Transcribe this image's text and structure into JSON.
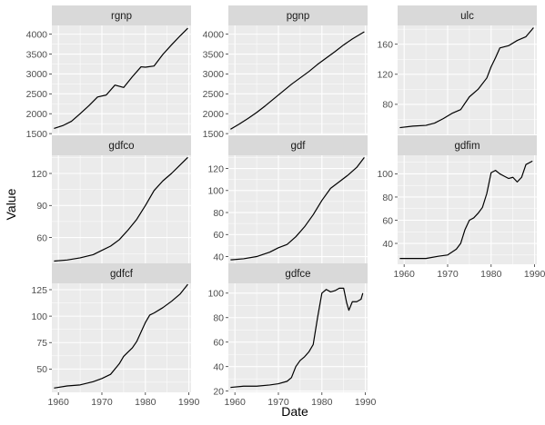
{
  "chart_data": {
    "type": "line",
    "layout": "facet_wrap",
    "ncol": 3,
    "xlabel": "Date",
    "ylabel": "Value",
    "x_ticks": [
      1960,
      1970,
      1980,
      1990
    ],
    "x_range": [
      1958.5,
      1990.5
    ],
    "grid": true,
    "colors": {
      "panel_bg": "#EBEBEB",
      "strip_bg": "#D9D9D9",
      "grid": "#FFFFFF",
      "line": "#000000"
    },
    "panels": [
      {
        "name": "rgnp",
        "ylim": [
          1480,
          4220
        ],
        "y_ticks": [
          1500,
          2000,
          2500,
          3000,
          3500,
          4000
        ],
        "x": [
          1959,
          1961,
          1963,
          1965,
          1967,
          1969,
          1971,
          1973,
          1975,
          1977,
          1979,
          1980,
          1982,
          1984,
          1986,
          1988,
          1989.75
        ],
        "values": [
          1630,
          1700,
          1810,
          2000,
          2200,
          2420,
          2470,
          2720,
          2660,
          2930,
          3180,
          3170,
          3200,
          3490,
          3730,
          3960,
          4150
        ]
      },
      {
        "name": "pgnp",
        "ylim": [
          1480,
          4220
        ],
        "y_ticks": [
          1500,
          2000,
          2500,
          3000,
          3500,
          4000
        ],
        "x": [
          1959,
          1961,
          1963,
          1965,
          1967,
          1969,
          1971,
          1973,
          1975,
          1977,
          1979,
          1981,
          1983,
          1985,
          1987,
          1989.75
        ],
        "values": [
          1610,
          1740,
          1880,
          2030,
          2200,
          2380,
          2560,
          2740,
          2900,
          3060,
          3240,
          3400,
          3560,
          3730,
          3880,
          4060
        ]
      },
      {
        "name": "ulc",
        "ylim": [
          40,
          185
        ],
        "y_ticks": [
          80,
          120,
          160
        ],
        "x": [
          1959,
          1962,
          1965,
          1967,
          1969,
          1971,
          1973,
          1975,
          1977,
          1979,
          1980,
          1981,
          1982,
          1984,
          1986,
          1988,
          1989.75
        ],
        "values": [
          49,
          51,
          52,
          55,
          61,
          68,
          73,
          90,
          100,
          115,
          130,
          142,
          155,
          158,
          165,
          170,
          182
        ]
      },
      {
        "name": "gdfco",
        "ylim": [
          35,
          137
        ],
        "y_ticks": [
          60,
          90,
          120
        ],
        "x": [
          1959,
          1962,
          1965,
          1968,
          1970,
          1972,
          1974,
          1976,
          1978,
          1980,
          1982,
          1984,
          1986,
          1988,
          1989.75
        ],
        "values": [
          38,
          39,
          41,
          44,
          48,
          52,
          58,
          67,
          77,
          90,
          104,
          113,
          120,
          128,
          135
        ]
      },
      {
        "name": "gdf",
        "ylim": [
          33,
          132
        ],
        "y_ticks": [
          40,
          60,
          80,
          100,
          120
        ],
        "x": [
          1959,
          1962,
          1965,
          1968,
          1970,
          1972,
          1974,
          1976,
          1978,
          1980,
          1982,
          1984,
          1986,
          1988,
          1989.75
        ],
        "values": [
          37,
          38,
          40,
          44,
          48,
          51,
          58,
          67,
          78,
          91,
          102,
          108,
          114,
          121,
          130
        ]
      },
      {
        "name": "gdfim",
        "ylim": [
          22,
          116
        ],
        "y_ticks": [
          40,
          60,
          80,
          100
        ],
        "x": [
          1959,
          1962,
          1965,
          1968,
          1970,
          1972,
          1973,
          1974,
          1975,
          1976,
          1977,
          1978,
          1979,
          1980,
          1981,
          1982,
          1983,
          1984,
          1985,
          1986,
          1987,
          1988,
          1989.5
        ],
        "values": [
          27,
          27,
          27,
          29,
          30,
          35,
          40,
          52,
          60,
          62,
          66,
          71,
          83,
          101,
          103,
          100,
          98,
          96,
          97,
          93,
          97,
          108,
          111
        ]
      },
      {
        "name": "gdfcf",
        "ylim": [
          28,
          131
        ],
        "y_ticks": [
          50,
          75,
          100,
          125
        ],
        "x": [
          1959,
          1962,
          1965,
          1968,
          1970,
          1972,
          1974,
          1975,
          1976,
          1977,
          1978,
          1979,
          1980,
          1981,
          1982,
          1984,
          1986,
          1988,
          1989.75
        ],
        "values": [
          32,
          34,
          35,
          38,
          41,
          45,
          55,
          62,
          66,
          70,
          76,
          85,
          94,
          101,
          103,
          108,
          114,
          121,
          130
        ]
      },
      {
        "name": "gdfce",
        "ylim": [
          19,
          108
        ],
        "y_ticks": [
          20,
          40,
          60,
          80,
          100
        ],
        "x": [
          1959,
          1962,
          1965,
          1968,
          1970,
          1972,
          1973,
          1974,
          1975,
          1976,
          1977,
          1978,
          1979,
          1980,
          1981,
          1982,
          1983,
          1984,
          1985,
          1985.7,
          1986.2,
          1987,
          1988,
          1989,
          1989.4
        ],
        "values": [
          23,
          24,
          24,
          25,
          26,
          28,
          31,
          40,
          45,
          48,
          52,
          58,
          80,
          100,
          103,
          101,
          102,
          104,
          104,
          92,
          86,
          93,
          93,
          95,
          100
        ]
      }
    ]
  }
}
